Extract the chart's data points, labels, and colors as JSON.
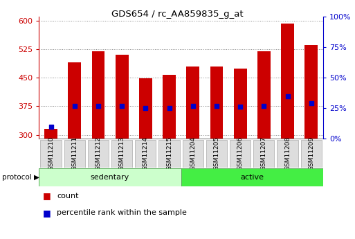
{
  "title": "GDS654 / rc_AA859835_g_at",
  "samples": [
    "GSM11210",
    "GSM11211",
    "GSM11212",
    "GSM11213",
    "GSM11214",
    "GSM11215",
    "GSM11204",
    "GSM11205",
    "GSM11206",
    "GSM11207",
    "GSM11208",
    "GSM11209"
  ],
  "groups": [
    "sedentary",
    "sedentary",
    "sedentary",
    "sedentary",
    "sedentary",
    "sedentary",
    "active",
    "active",
    "active",
    "active",
    "active",
    "active"
  ],
  "counts": [
    315,
    490,
    520,
    510,
    448,
    458,
    480,
    480,
    473,
    520,
    592,
    535
  ],
  "percentile_ranks": [
    10,
    27,
    27,
    27,
    25,
    25,
    27,
    27,
    26,
    27,
    35,
    29
  ],
  "ylim_left": [
    290,
    610
  ],
  "ylim_right": [
    0,
    100
  ],
  "yticks_left": [
    300,
    375,
    450,
    525,
    600
  ],
  "yticks_right": [
    0,
    25,
    50,
    75,
    100
  ],
  "bar_color": "#cc0000",
  "dot_color": "#0000cc",
  "sedentary_color": "#ccffcc",
  "active_color": "#44ee44",
  "left_tick_color": "#cc0000",
  "right_tick_color": "#0000cc",
  "bar_width": 0.55,
  "bar_bottom": 290,
  "legend_count_label": "count",
  "legend_percentile_label": "percentile rank within the sample",
  "sample_box_color": "#dddddd",
  "sample_box_edge": "#aaaaaa",
  "grid_color": "#888888",
  "axis_box_color": "#888888"
}
